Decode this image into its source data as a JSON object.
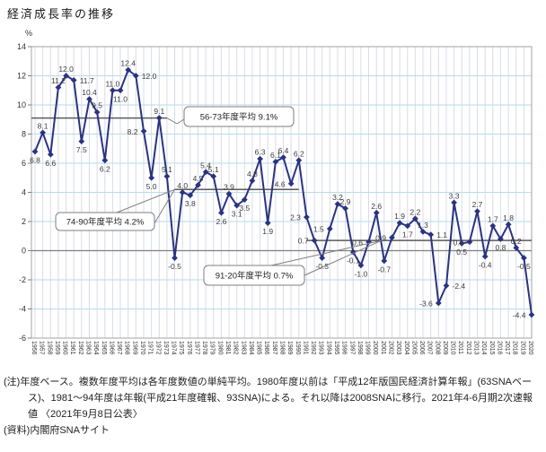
{
  "page": {
    "title": "経済成長率の推移"
  },
  "chart_data": {
    "type": "line",
    "title": "経済成長率の推移",
    "unit_label": "%",
    "ylim": [
      -6,
      14
    ],
    "ytick_step": 2,
    "grid": true,
    "legend": "none",
    "line_color": "#2a3382",
    "marker": "diamond",
    "years": [
      1956,
      1957,
      1958,
      1959,
      1960,
      1961,
      1962,
      1963,
      1964,
      1965,
      1966,
      1967,
      1968,
      1969,
      1970,
      1971,
      1972,
      1973,
      1974,
      1975,
      1976,
      1977,
      1978,
      1979,
      1980,
      1981,
      1982,
      1983,
      1984,
      1985,
      1986,
      1987,
      1988,
      1989,
      1990,
      1991,
      1992,
      1993,
      1994,
      1995,
      1996,
      1997,
      1998,
      1999,
      2000,
      2001,
      2002,
      2003,
      2004,
      2005,
      2006,
      2007,
      2008,
      2009,
      2010,
      2011,
      2012,
      2013,
      2014,
      2015,
      2016,
      2017,
      2018,
      2019,
      2020
    ],
    "values": [
      6.8,
      8.1,
      6.6,
      11.2,
      12.0,
      11.7,
      7.5,
      10.4,
      9.5,
      6.2,
      11.0,
      11.0,
      12.4,
      12.0,
      8.2,
      5.0,
      9.1,
      5.1,
      -0.5,
      4.0,
      3.8,
      4.5,
      5.4,
      5.1,
      2.6,
      3.9,
      3.1,
      3.5,
      4.8,
      6.3,
      1.9,
      6.1,
      6.4,
      4.6,
      6.2,
      2.3,
      0.7,
      -0.5,
      1.5,
      3.2,
      2.9,
      -0.1,
      -1.0,
      0.6,
      2.6,
      -0.7,
      0.9,
      1.9,
      1.7,
      2.2,
      1.3,
      1.1,
      -3.6,
      -2.4,
      3.3,
      0.5,
      0.6,
      2.7,
      -0.4,
      1.7,
      0.8,
      1.8,
      0.2,
      -0.5,
      -4.4
    ],
    "label_pos": [
      "B",
      "A",
      "B",
      "A",
      "A",
      "R",
      "B",
      "A",
      "A",
      "B",
      "A",
      "B",
      "A",
      "R",
      "L",
      "B",
      "A",
      "A",
      "B",
      "A",
      "B",
      "A",
      "A",
      "A",
      "B",
      "A",
      "B",
      "B",
      "A",
      "A",
      "B",
      "A",
      "A",
      "L",
      "A",
      "L",
      "L",
      "B",
      "L",
      "A",
      "A",
      "B",
      "B",
      "L",
      "A",
      "B",
      "L",
      "A",
      "B",
      "A",
      "A",
      "R",
      "L",
      "R",
      "A",
      "B",
      "L",
      "A",
      "B",
      "A",
      "B",
      "A",
      "A",
      "B",
      "L"
    ],
    "annotations": [
      {
        "label": "56-73年度平均 9.1%",
        "value": 9.1,
        "x_from": 1956,
        "x_to": 1973
      },
      {
        "label": "74-90年度平均 4.2%",
        "value": 4.2,
        "x_from": 1974,
        "x_to": 1990
      },
      {
        "label": "91-20年度平均 0.7%",
        "value": 0.7,
        "x_from": 1991,
        "x_to": 2020
      }
    ],
    "colors": {
      "series": "#2a3382",
      "h_grid": "#badaea",
      "v_grid": "#d9dce8",
      "border": "#a3a3a3",
      "zero_line": "#7f7f7f",
      "avg_line": "#5a5a5a",
      "data_label": "#3c3c3c",
      "axis_label": "#333333",
      "annotation_border": "#7f7f7f",
      "annotation_fill": "#ffffff"
    }
  },
  "notes": {
    "note1": "(注)年度ベース。複数年度平均は各年度数値の単純平均。1980年度以前は「平成12年版国民経済計算年報」(63SNAベース)、1981〜94年度は年報(平成21年度確報、93SNA)による。それ以降は2008SNAに移行。2021年4-6月期2次速報値 〈2021年9月8日公表〉",
    "note2": "(資料)内閣府SNAサイト"
  }
}
